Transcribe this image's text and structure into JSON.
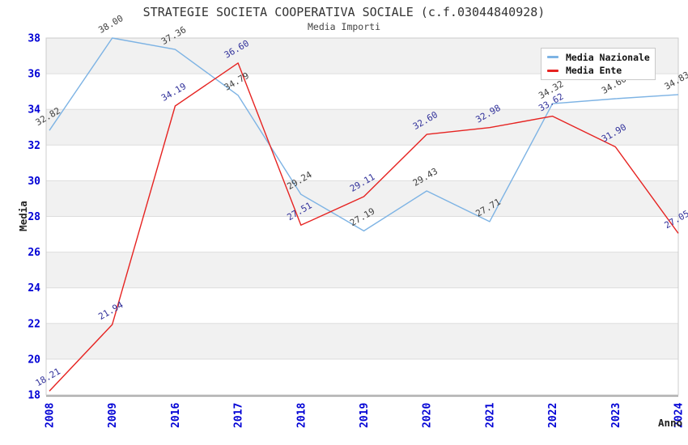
{
  "title": "STRATEGIE SOCIETA COOPERATIVA SOCIALE (c.f.03044840928)",
  "subtitle": "Media Importi",
  "chart_data": {
    "type": "line",
    "x": [
      "2008",
      "2009",
      "2016",
      "2017",
      "2018",
      "2019",
      "2020",
      "2021",
      "2022",
      "2023",
      "2024"
    ],
    "series": [
      {
        "name": "Media Nazionale",
        "color": "#7db3e4",
        "label_color": "#3f3f3f",
        "values": [
          32.82,
          38.0,
          37.36,
          34.79,
          29.24,
          27.19,
          29.43,
          27.71,
          34.32,
          34.6,
          34.83
        ]
      },
      {
        "name": "Media Ente",
        "color": "#e62321",
        "label_color": "#32329b",
        "values": [
          18.21,
          21.94,
          34.19,
          36.6,
          27.51,
          29.11,
          32.6,
          32.98,
          33.62,
          31.9,
          27.05
        ]
      }
    ],
    "xlabel": "Anno",
    "ylabel": "Media",
    "ylim": [
      18,
      38
    ],
    "yticks": [
      18,
      20,
      22,
      24,
      26,
      28,
      30,
      32,
      34,
      36,
      38
    ],
    "label_decimals": 2,
    "legend_position": "top-right",
    "grid": "horizontal gridlines with alternating shaded bands",
    "point_label_rotation_deg": -30,
    "x_tick_rotation_deg": -90
  },
  "colors": {
    "background": "#ffffff",
    "band": "#f1f1f1",
    "grid": "#dddddd",
    "plot_border": "#cccccc",
    "axis_line": "#999999",
    "tick_label": "#0000d5",
    "axis_label": "#222222",
    "title": "#333333",
    "subtitle": "#444444",
    "legend_border": "#c9c9c9",
    "legend_text": "#111111"
  }
}
